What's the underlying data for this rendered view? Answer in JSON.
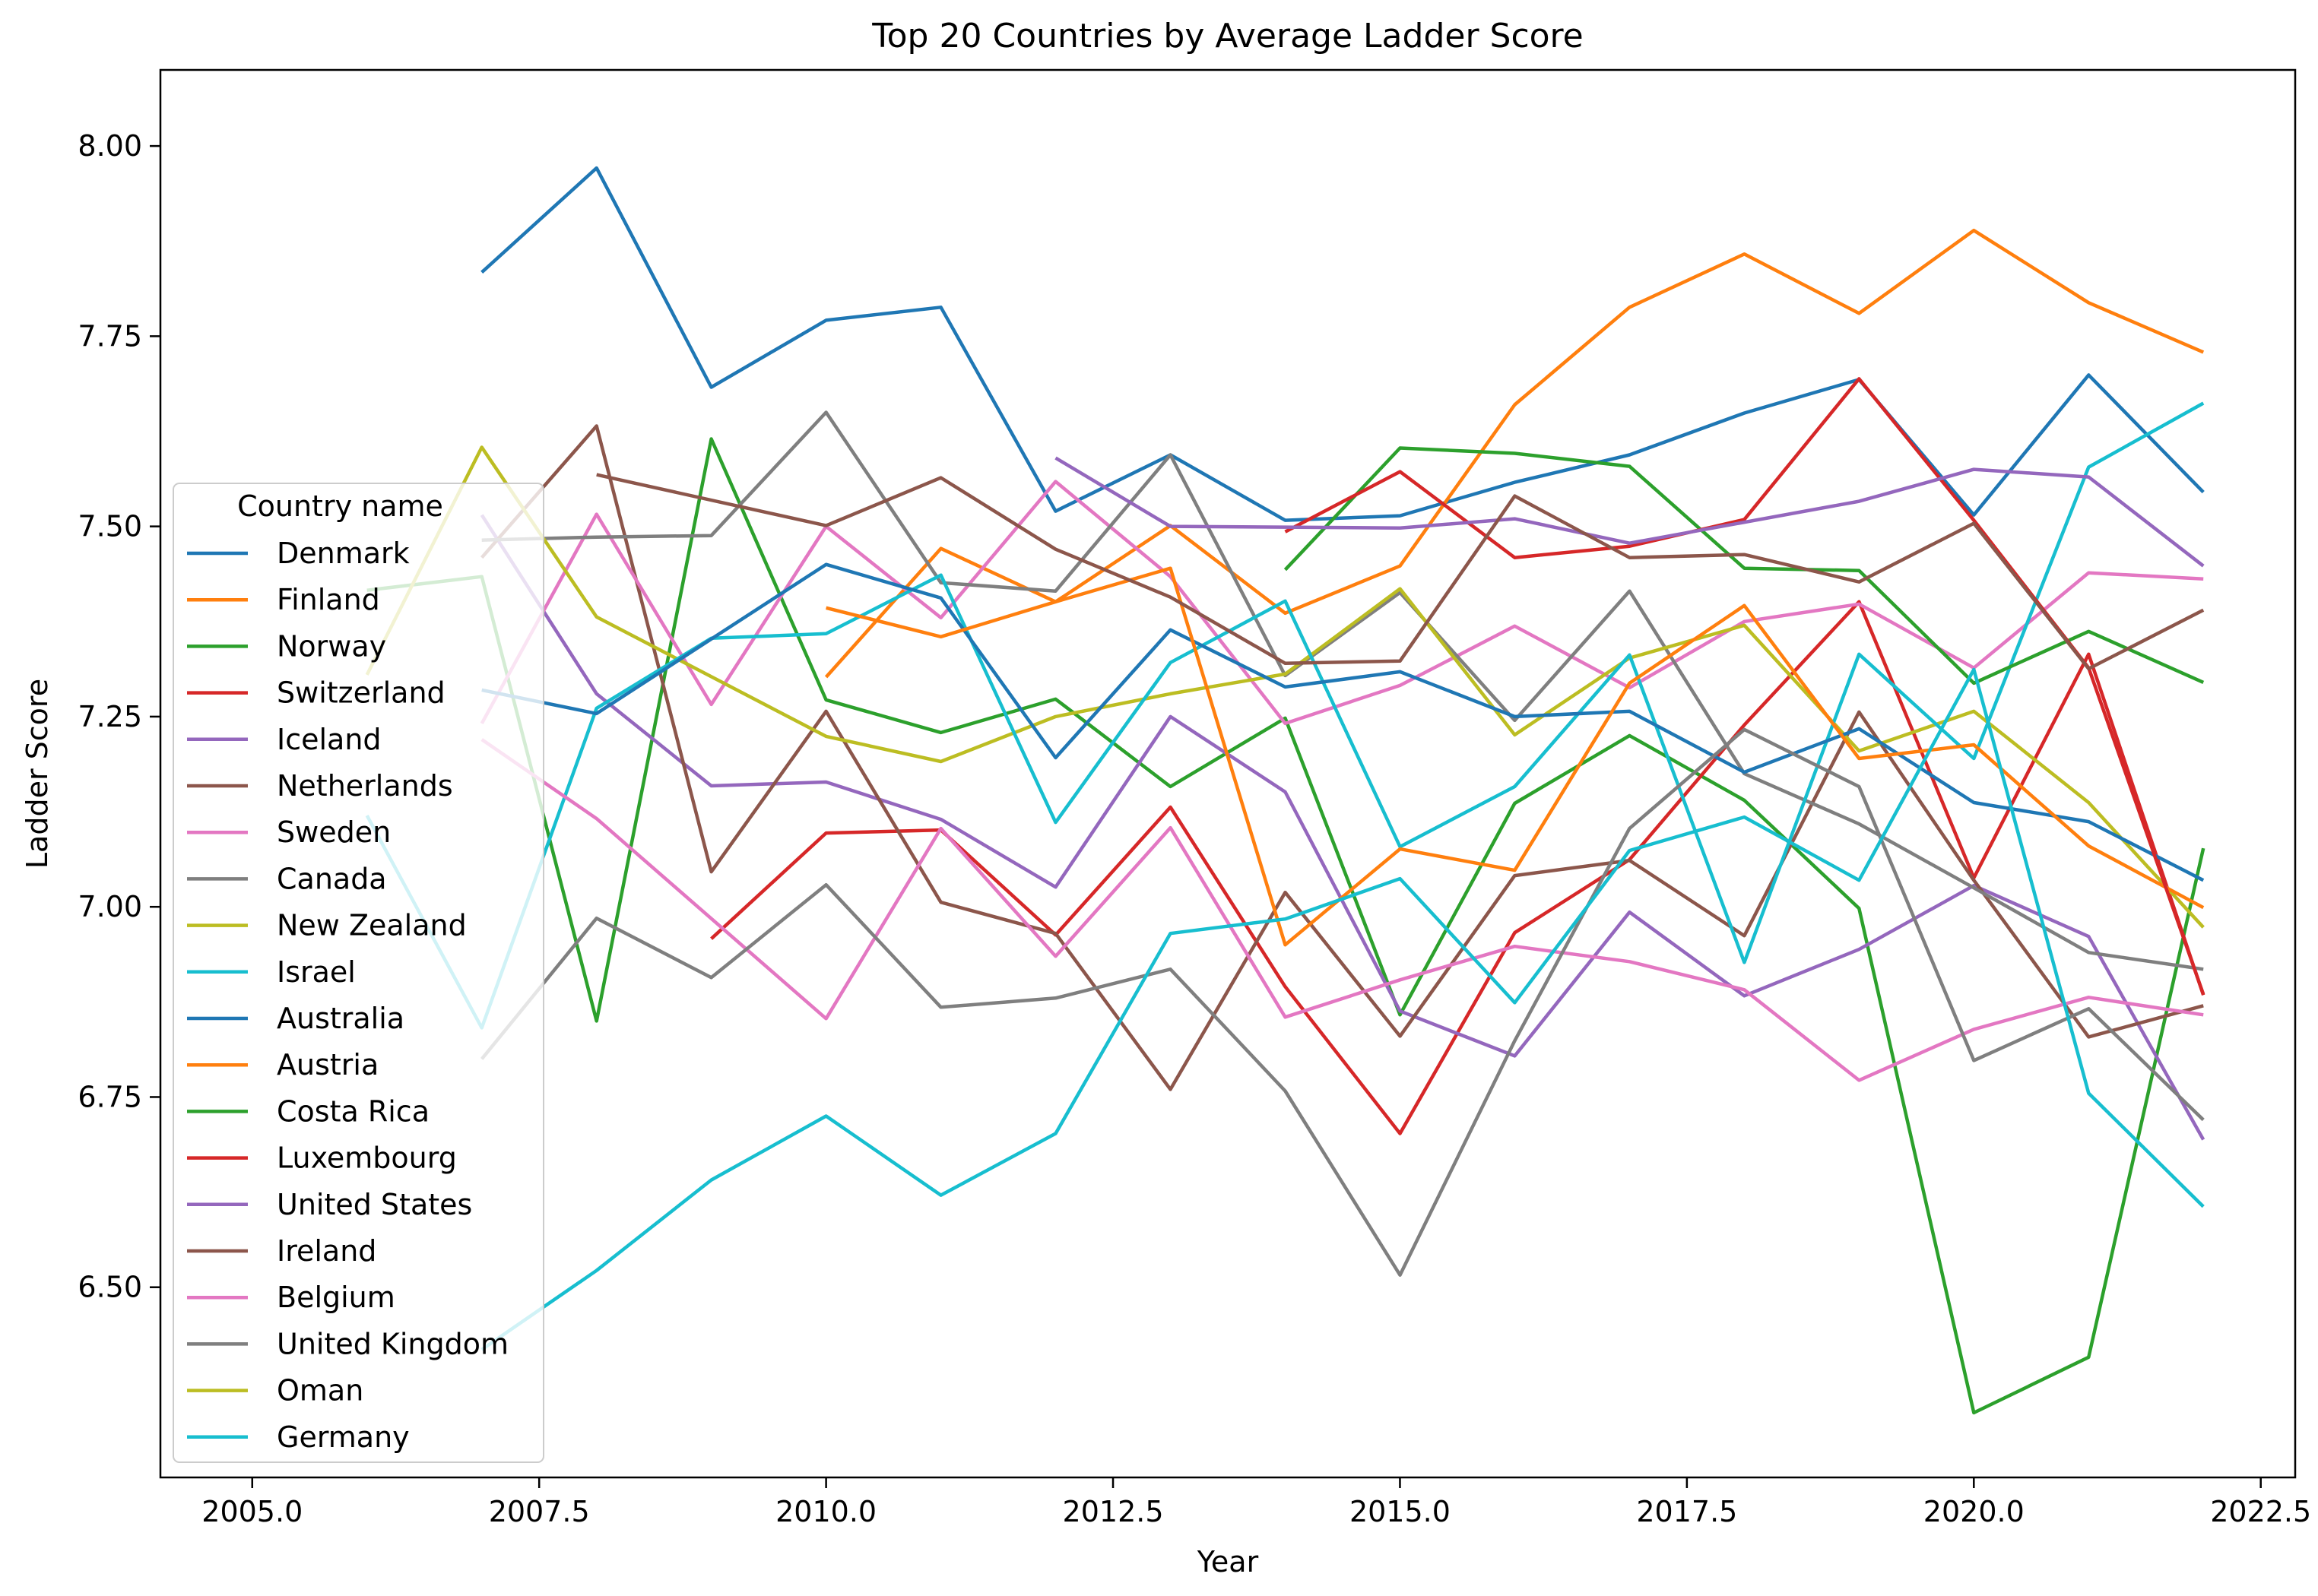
{
  "chart_data": {
    "type": "line",
    "title": "Top 20 Countries by Average Ladder Score",
    "xlabel": "Year",
    "ylabel": "Ladder Score",
    "xlim": [
      2004.2,
      2022.8
    ],
    "ylim": [
      6.25,
      8.1
    ],
    "xticks": [
      2005.0,
      2007.5,
      2010.0,
      2012.5,
      2015.0,
      2017.5,
      2020.0,
      2022.5
    ],
    "xtick_labels": [
      "2005.0",
      "2007.5",
      "2010.0",
      "2012.5",
      "2015.0",
      "2017.5",
      "2020.0",
      "2022.5"
    ],
    "yticks": [
      6.5,
      6.75,
      7.0,
      7.25,
      7.5,
      7.75,
      8.0
    ],
    "ytick_labels": [
      "6.50",
      "6.75",
      "7.00",
      "7.25",
      "7.50",
      "7.75",
      "8.00"
    ],
    "grid": false,
    "legend_title": "Country name",
    "legend_position": "center-left",
    "series": [
      {
        "name": "Denmark",
        "color": "#1f77b4",
        "points": [
          [
            2007,
            7.834
          ],
          [
            2008,
            7.971
          ],
          [
            2009,
            7.683
          ],
          [
            2010,
            7.771
          ],
          [
            2011,
            7.788
          ],
          [
            2012,
            7.52
          ],
          [
            2013,
            7.594
          ],
          [
            2014,
            7.508
          ],
          [
            2015,
            7.514
          ],
          [
            2016,
            7.558
          ],
          [
            2017,
            7.594
          ],
          [
            2018,
            7.649
          ],
          [
            2019,
            7.693
          ],
          [
            2020,
            7.515
          ],
          [
            2021,
            7.699
          ],
          [
            2022,
            7.545
          ]
        ]
      },
      {
        "name": "Finland",
        "color": "#ff7f0e",
        "points": [
          [
            2010,
            7.302
          ],
          [
            2011,
            7.471
          ],
          [
            2012,
            7.401
          ],
          [
            2013,
            7.501
          ],
          [
            2014,
            7.386
          ],
          [
            2015,
            7.448
          ],
          [
            2016,
            7.66
          ],
          [
            2017,
            7.788
          ],
          [
            2018,
            7.858
          ],
          [
            2019,
            7.78
          ],
          [
            2020,
            7.889
          ],
          [
            2021,
            7.794
          ],
          [
            2022,
            7.729
          ]
        ]
      },
      {
        "name": "Norway",
        "color": "#2ca02c",
        "points": [
          [
            2006,
            7.416
          ],
          [
            2007,
            7.434
          ],
          [
            2008,
            6.85
          ],
          [
            2009,
            7.615
          ],
          [
            2010,
            7.272
          ],
          [
            2011,
            7.229
          ],
          [
            2012,
            7.273
          ],
          [
            2013,
            7.158
          ],
          [
            2014,
            7.248
          ],
          [
            2015,
            6.858
          ],
          [
            2016,
            7.136
          ],
          [
            2017,
            7.225
          ],
          [
            2018,
            7.14
          ],
          [
            2019,
            6.998
          ],
          [
            2020,
            6.335
          ],
          [
            2021,
            6.408
          ],
          [
            2022,
            7.077
          ]
        ]
      },
      {
        "name": "Switzerland",
        "color": "#d62728",
        "points": [
          [
            2009,
            6.958
          ],
          [
            2010,
            7.097
          ],
          [
            2011,
            7.101
          ],
          [
            2012,
            6.963
          ],
          [
            2013,
            7.131
          ],
          [
            2014,
            6.895
          ],
          [
            2015,
            6.702
          ],
          [
            2016,
            6.966
          ],
          [
            2017,
            7.062
          ],
          [
            2018,
            7.239
          ],
          [
            2019,
            7.401
          ],
          [
            2020,
            7.038
          ],
          [
            2021,
            7.332
          ],
          [
            2022,
            6.884
          ]
        ]
      },
      {
        "name": "Iceland",
        "color": "#9467bd",
        "points": [
          [
            2007,
            7.515
          ],
          [
            2008,
            7.28
          ],
          [
            2009,
            7.159
          ],
          [
            2010,
            7.164
          ],
          [
            2011,
            7.115
          ],
          [
            2012,
            7.026
          ],
          [
            2013,
            7.25
          ],
          [
            2014,
            7.151
          ],
          [
            2015,
            6.863
          ],
          [
            2016,
            6.804
          ],
          [
            2017,
            6.993
          ],
          [
            2018,
            6.883
          ],
          [
            2019,
            6.944
          ],
          [
            2020,
            7.028
          ],
          [
            2021,
            6.961
          ],
          [
            2022,
            6.694
          ]
        ]
      },
      {
        "name": "Netherlands",
        "color": "#8c564b",
        "points": [
          [
            2007,
            7.459
          ],
          [
            2008,
            7.632
          ],
          [
            2009,
            7.046
          ],
          [
            2010,
            7.257
          ],
          [
            2011,
            7.006
          ],
          [
            2012,
            6.965
          ],
          [
            2013,
            6.76
          ],
          [
            2014,
            7.019
          ],
          [
            2015,
            6.83
          ],
          [
            2016,
            7.041
          ],
          [
            2017,
            7.061
          ],
          [
            2018,
            6.962
          ],
          [
            2019,
            7.256
          ],
          [
            2020,
            7.035
          ],
          [
            2021,
            6.829
          ],
          [
            2022,
            6.87
          ]
        ]
      },
      {
        "name": "Sweden",
        "color": "#e377c2",
        "points": [
          [
            2007,
            7.241
          ],
          [
            2008,
            7.516
          ],
          [
            2009,
            7.266
          ],
          [
            2010,
            7.5
          ],
          [
            2011,
            7.38
          ],
          [
            2012,
            7.559
          ],
          [
            2013,
            7.434
          ],
          [
            2014,
            7.241
          ],
          [
            2015,
            7.291
          ],
          [
            2016,
            7.369
          ],
          [
            2017,
            7.288
          ],
          [
            2018,
            7.375
          ],
          [
            2019,
            7.398
          ],
          [
            2020,
            7.314
          ],
          [
            2021,
            7.439
          ],
          [
            2022,
            7.431
          ]
        ]
      },
      {
        "name": "Canada",
        "color": "#7f7f7f",
        "points": [
          [
            2007,
            7.482
          ],
          [
            2008,
            7.486
          ],
          [
            2009,
            7.488
          ],
          [
            2010,
            7.65
          ],
          [
            2011,
            7.426
          ],
          [
            2012,
            7.415
          ],
          [
            2013,
            7.594
          ],
          [
            2014,
            7.304
          ],
          [
            2015,
            7.413
          ],
          [
            2016,
            7.245
          ],
          [
            2017,
            7.415
          ],
          [
            2018,
            7.175
          ],
          [
            2019,
            7.109
          ],
          [
            2020,
            7.025
          ],
          [
            2021,
            6.94
          ],
          [
            2022,
            6.918
          ]
        ]
      },
      {
        "name": "New Zealand",
        "color": "#bcbd22",
        "points": [
          [
            2006,
            7.305
          ],
          [
            2007,
            7.604
          ],
          [
            2008,
            7.381
          ],
          [
            2010,
            7.224
          ],
          [
            2011,
            7.191
          ],
          [
            2012,
            7.25
          ],
          [
            2013,
            7.28
          ],
          [
            2014,
            7.306
          ],
          [
            2015,
            7.418
          ],
          [
            2016,
            7.226
          ],
          [
            2017,
            7.327
          ],
          [
            2018,
            7.37
          ],
          [
            2019,
            7.205
          ],
          [
            2020,
            7.257
          ],
          [
            2021,
            7.137
          ],
          [
            2022,
            6.973
          ]
        ]
      },
      {
        "name": "Israel",
        "color": "#17becf",
        "points": [
          [
            2006,
            7.12
          ],
          [
            2007,
            6.841
          ],
          [
            2008,
            7.261
          ],
          [
            2009,
            7.353
          ],
          [
            2010,
            7.359
          ],
          [
            2011,
            7.436
          ],
          [
            2012,
            7.111
          ],
          [
            2013,
            7.321
          ],
          [
            2014,
            7.402
          ],
          [
            2015,
            7.079
          ],
          [
            2016,
            7.158
          ],
          [
            2017,
            7.331
          ],
          [
            2018,
            6.927
          ],
          [
            2019,
            7.332
          ],
          [
            2020,
            7.195
          ],
          [
            2021,
            7.578
          ],
          [
            2022,
            7.662
          ]
        ]
      },
      {
        "name": "Australia",
        "color": "#1f77b4",
        "points": [
          [
            2007,
            7.285
          ],
          [
            2008,
            7.254
          ],
          [
            2010,
            7.45
          ],
          [
            2011,
            7.406
          ],
          [
            2012,
            7.196
          ],
          [
            2013,
            7.364
          ],
          [
            2014,
            7.289
          ],
          [
            2015,
            7.309
          ],
          [
            2016,
            7.25
          ],
          [
            2017,
            7.257
          ],
          [
            2018,
            7.177
          ],
          [
            2019,
            7.234
          ],
          [
            2020,
            7.137
          ],
          [
            2021,
            7.112
          ],
          [
            2022,
            7.035
          ]
        ]
      },
      {
        "name": "Austria",
        "color": "#ff7f0e",
        "points": [
          [
            2010,
            7.393
          ],
          [
            2011,
            7.355
          ],
          [
            2012,
            7.401
          ],
          [
            2013,
            7.445
          ],
          [
            2014,
            6.95
          ],
          [
            2015,
            7.076
          ],
          [
            2016,
            7.048
          ],
          [
            2017,
            7.294
          ],
          [
            2018,
            7.396
          ],
          [
            2019,
            7.195
          ],
          [
            2020,
            7.213
          ],
          [
            2021,
            7.08
          ],
          [
            2022,
            6.999
          ]
        ]
      },
      {
        "name": "Costa Rica",
        "color": "#2ca02c",
        "points": [
          [
            2014,
            7.443
          ],
          [
            2015,
            7.603
          ],
          [
            2016,
            7.596
          ],
          [
            2017,
            7.579
          ],
          [
            2018,
            7.445
          ],
          [
            2019,
            7.442
          ],
          [
            2020,
            7.294
          ],
          [
            2021,
            7.362
          ],
          [
            2022,
            7.295
          ]
        ]
      },
      {
        "name": "Luxembourg",
        "color": "#d62728",
        "points": [
          [
            2014,
            7.493
          ],
          [
            2015,
            7.572
          ],
          [
            2016,
            7.459
          ],
          [
            2017,
            7.474
          ],
          [
            2018,
            7.509
          ],
          [
            2019,
            7.694
          ],
          [
            2020,
            7.508
          ],
          [
            2021,
            7.314
          ],
          [
            2022,
            6.885
          ]
        ]
      },
      {
        "name": "United States",
        "color": "#9467bd",
        "points": [
          [
            2012,
            7.59
          ],
          [
            2013,
            7.5
          ],
          [
            2015,
            7.498
          ],
          [
            2016,
            7.51
          ],
          [
            2017,
            7.478
          ],
          [
            2019,
            7.533
          ],
          [
            2020,
            7.575
          ],
          [
            2021,
            7.565
          ],
          [
            2022,
            7.448
          ]
        ]
      },
      {
        "name": "Ireland",
        "color": "#8c564b",
        "points": [
          [
            2008,
            7.568
          ],
          [
            2010,
            7.501
          ],
          [
            2011,
            7.564
          ],
          [
            2012,
            7.47
          ],
          [
            2013,
            7.407
          ],
          [
            2014,
            7.32
          ],
          [
            2015,
            7.323
          ],
          [
            2016,
            7.54
          ],
          [
            2017,
            7.459
          ],
          [
            2018,
            7.463
          ],
          [
            2019,
            7.427
          ],
          [
            2020,
            7.504
          ],
          [
            2021,
            7.313
          ],
          [
            2022,
            7.39
          ]
        ]
      },
      {
        "name": "Belgium",
        "color": "#e377c2",
        "points": [
          [
            2007,
            7.22
          ],
          [
            2008,
            7.116
          ],
          [
            2010,
            6.853
          ],
          [
            2011,
            7.103
          ],
          [
            2012,
            6.935
          ],
          [
            2013,
            7.104
          ],
          [
            2014,
            6.855
          ],
          [
            2015,
            6.904
          ],
          [
            2016,
            6.948
          ],
          [
            2017,
            6.928
          ],
          [
            2018,
            6.891
          ],
          [
            2019,
            6.772
          ],
          [
            2020,
            6.839
          ],
          [
            2021,
            6.881
          ],
          [
            2022,
            6.858
          ]
        ]
      },
      {
        "name": "United Kingdom",
        "color": "#7f7f7f",
        "points": [
          [
            2007,
            6.8
          ],
          [
            2008,
            6.985
          ],
          [
            2009,
            6.907
          ],
          [
            2010,
            7.029
          ],
          [
            2011,
            6.868
          ],
          [
            2012,
            6.88
          ],
          [
            2013,
            6.918
          ],
          [
            2014,
            6.758
          ],
          [
            2015,
            6.516
          ],
          [
            2016,
            6.824
          ],
          [
            2017,
            7.103
          ],
          [
            2018,
            7.233
          ],
          [
            2019,
            7.158
          ],
          [
            2020,
            6.798
          ],
          [
            2021,
            6.866
          ],
          [
            2022,
            6.72
          ]
        ]
      },
      {
        "name": "Oman",
        "color": "#bcbd22",
        "points": []
      },
      {
        "name": "Germany",
        "color": "#17becf",
        "points": [
          [
            2007,
            6.418
          ],
          [
            2008,
            6.522
          ],
          [
            2009,
            6.641
          ],
          [
            2010,
            6.725
          ],
          [
            2011,
            6.621
          ],
          [
            2012,
            6.702
          ],
          [
            2013,
            6.965
          ],
          [
            2014,
            6.984
          ],
          [
            2015,
            7.037
          ],
          [
            2016,
            6.874
          ],
          [
            2017,
            7.074
          ],
          [
            2018,
            7.118
          ],
          [
            2019,
            7.035
          ],
          [
            2020,
            7.312
          ],
          [
            2021,
            6.755
          ],
          [
            2022,
            6.606
          ]
        ]
      }
    ]
  }
}
